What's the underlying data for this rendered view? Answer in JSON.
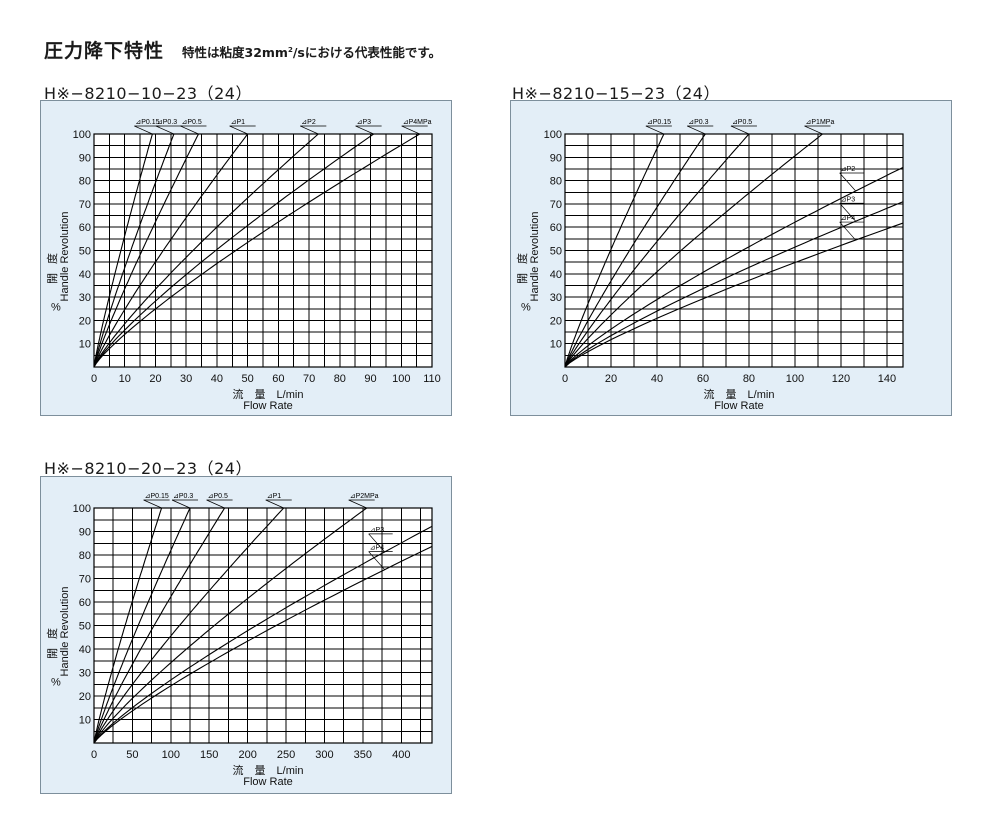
{
  "header": {
    "title": "圧力降下特性",
    "subtitle_pre": "特性は粘度32mm",
    "subtitle_sup": "2",
    "subtitle_post": "/sにおける代表性能です。"
  },
  "colors": {
    "panel_bg": "#e3eef7",
    "panel_border": "#7d8f9c",
    "line": "#000000"
  },
  "chart_data": [
    {
      "model": "H※−8210−10−23（24）",
      "type": "line",
      "xlabel_jp": "流　量　L/min",
      "xlabel_en": "Flow Rate",
      "ylabel_jp_1": "開",
      "ylabel_jp_2": "度",
      "ylabel_en": "Handle Revolution",
      "ylabel_pct": "%",
      "xlim": [
        0,
        110
      ],
      "ylim": [
        0,
        100
      ],
      "xticks": [
        0,
        10,
        20,
        30,
        40,
        50,
        60,
        70,
        80,
        90,
        100,
        110
      ],
      "yticks": [
        10,
        20,
        30,
        40,
        50,
        60,
        70,
        80,
        90,
        100
      ],
      "series": [
        {
          "name": "⊿P0.15",
          "x_at_100": 19,
          "exponent": 1.12
        },
        {
          "name": "⊿P0.3",
          "x_at_100": 26,
          "exponent": 1.12
        },
        {
          "name": "⊿P0.5",
          "x_at_100": 34,
          "exponent": 1.12
        },
        {
          "name": "⊿P1",
          "x_at_100": 50,
          "exponent": 1.15
        },
        {
          "name": "⊿P2",
          "x_at_100": 73,
          "exponent": 1.18
        },
        {
          "name": "⊿P3",
          "x_at_100": 91,
          "exponent": 1.2
        },
        {
          "name": "⊿P4MPa",
          "x_at_100": 106,
          "exponent": 1.2
        }
      ]
    },
    {
      "model": "H※−8210−15−23（24）",
      "type": "line",
      "xlabel_jp": "流　量　L/min",
      "xlabel_en": "Flow Rate",
      "ylabel_jp_1": "開",
      "ylabel_jp_2": "度",
      "ylabel_en": "Handle Revolution",
      "ylabel_pct": "%",
      "xlim": [
        0,
        147
      ],
      "ylim": [
        0,
        100
      ],
      "xticks": [
        0,
        20,
        40,
        60,
        80,
        100,
        120,
        140
      ],
      "yticks": [
        10,
        20,
        30,
        40,
        50,
        60,
        70,
        80,
        90,
        100
      ],
      "series": [
        {
          "name": "⊿P0.15",
          "x_at_100": 43,
          "exponent": 1.12
        },
        {
          "name": "⊿P0.3",
          "x_at_100": 61,
          "exponent": 1.12
        },
        {
          "name": "⊿P0.5",
          "x_at_100": 80,
          "exponent": 1.12
        },
        {
          "name": "⊿P1MPa",
          "x_at_100": 112,
          "exponent": 1.15
        },
        {
          "name": "⊿P2",
          "x_at_100": 177,
          "exponent": 1.2
        },
        {
          "name": "⊿P3",
          "x_at_100": 222,
          "exponent": 1.2
        },
        {
          "name": "⊿P4",
          "x_at_100": 262,
          "exponent": 1.2
        }
      ]
    },
    {
      "model": "H※−8210−20−23（24）",
      "type": "line",
      "xlabel_jp": "流　量　L/min",
      "xlabel_en": "Flow Rate",
      "ylabel_jp_1": "開",
      "ylabel_jp_2": "度",
      "ylabel_en": "Handle Revolution",
      "ylabel_pct": "%",
      "xlim": [
        0,
        440
      ],
      "ylim": [
        0,
        100
      ],
      "xticks": [
        0,
        50,
        100,
        150,
        200,
        250,
        300,
        350,
        400
      ],
      "yticks": [
        10,
        20,
        30,
        40,
        50,
        60,
        70,
        80,
        90,
        100
      ],
      "series": [
        {
          "name": "⊿P0.15",
          "x_at_100": 88,
          "exponent": 1.12
        },
        {
          "name": "⊿P0.3",
          "x_at_100": 125,
          "exponent": 1.12
        },
        {
          "name": "⊿P0.5",
          "x_at_100": 170,
          "exponent": 1.12
        },
        {
          "name": "⊿P1",
          "x_at_100": 247,
          "exponent": 1.15
        },
        {
          "name": "⊿P2MPa",
          "x_at_100": 355,
          "exponent": 1.18
        },
        {
          "name": "⊿P3",
          "x_at_100": 485,
          "exponent": 1.2
        },
        {
          "name": "⊿P4",
          "x_at_100": 545,
          "exponent": 1.2
        }
      ]
    }
  ]
}
